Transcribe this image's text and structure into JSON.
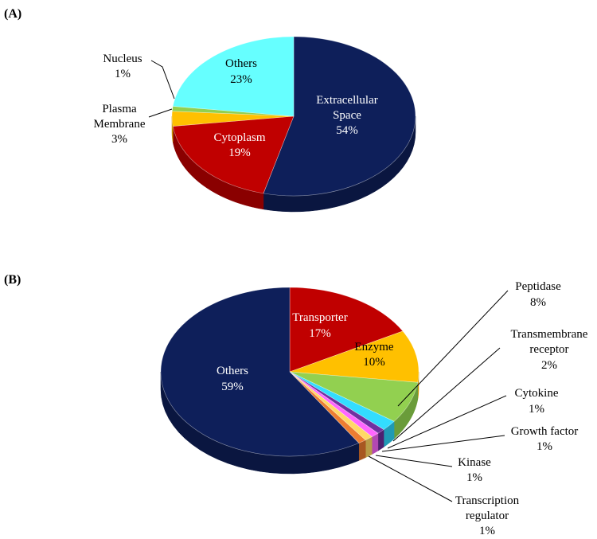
{
  "chart_data": [
    {
      "type": "pie",
      "panel": "(A)",
      "style": "3d",
      "slices": [
        {
          "label": "Extracellular Space",
          "value": 54,
          "pct": "54%",
          "color": "#0e1f5a",
          "side": "#0a1640"
        },
        {
          "label": "Cytoplasm",
          "value": 19,
          "pct": "19%",
          "color": "#c00000",
          "side": "#8a0000"
        },
        {
          "label": "Plasma Membrane",
          "value": 3,
          "pct": "3%",
          "color": "#ffc000",
          "side": "#c89400"
        },
        {
          "label": "Nucleus",
          "value": 1,
          "pct": "1%",
          "color": "#92d050",
          "side": "#6a9c3a"
        },
        {
          "label": "Others",
          "value": 23,
          "pct": "23%",
          "color": "#66ffff",
          "side": "#3cc4c4"
        }
      ]
    },
    {
      "type": "pie",
      "panel": "(B)",
      "style": "3d",
      "slices": [
        {
          "label": "Transporter",
          "value": 17,
          "pct": "17%",
          "color": "#c00000",
          "side": "#8a0000"
        },
        {
          "label": "Enzyme",
          "value": 10,
          "pct": "10%",
          "color": "#ffc000",
          "side": "#c89400"
        },
        {
          "label": "Peptidase",
          "value": 8,
          "pct": "8%",
          "color": "#92d050",
          "side": "#6a9c3a"
        },
        {
          "label": "Transmembrane receptor",
          "value": 2,
          "pct": "2%",
          "color": "#33ddff",
          "side": "#1f9ab5"
        },
        {
          "label": "Cytokine",
          "value": 1,
          "pct": "1%",
          "color": "#7030a0",
          "side": "#4e2070"
        },
        {
          "label": "Growth factor",
          "value": 1,
          "pct": "1%",
          "color": "#ff66ff",
          "side": "#b348b3"
        },
        {
          "label": "Kinase",
          "value": 1,
          "pct": "1%",
          "color": "#ffd966",
          "side": "#b89c48"
        },
        {
          "label": "Transcription regulator",
          "value": 1,
          "pct": "1%",
          "color": "#ed7d31",
          "side": "#a85822"
        },
        {
          "label": "Others",
          "value": 59,
          "pct": "59%",
          "color": "#0e1f5a",
          "side": "#0a1640"
        }
      ]
    }
  ],
  "labels": {
    "a": {
      "extracellular_1": "Extracellular",
      "extracellular_2": "Space",
      "extracellular_pct": "54%",
      "cytoplasm_1": "Cytoplasm",
      "cytoplasm_pct": "19%",
      "plasma_1": "Plasma",
      "plasma_2": "Membrane",
      "plasma_pct": "3%",
      "nucleus_1": "Nucleus",
      "nucleus_pct": "1%",
      "others_1": "Others",
      "others_pct": "23%"
    },
    "b": {
      "transporter_1": "Transporter",
      "transporter_pct": "17%",
      "enzyme_1": "Enzyme",
      "enzyme_pct": "10%",
      "others_1": "Others",
      "others_pct": "59%",
      "peptidase_1": "Peptidase",
      "peptidase_pct": "8%",
      "transmembrane_1": "Transmembrane",
      "transmembrane_2": "receptor",
      "transmembrane_pct": "2%",
      "cytokine_1": "Cytokine",
      "cytokine_pct": "1%",
      "growth_1": "Growth factor",
      "growth_pct": "1%",
      "kinase_1": "Kinase",
      "kinase_pct": "1%",
      "transcription_1": "Transcription",
      "transcription_2": "regulator",
      "transcription_pct": "1%"
    }
  }
}
